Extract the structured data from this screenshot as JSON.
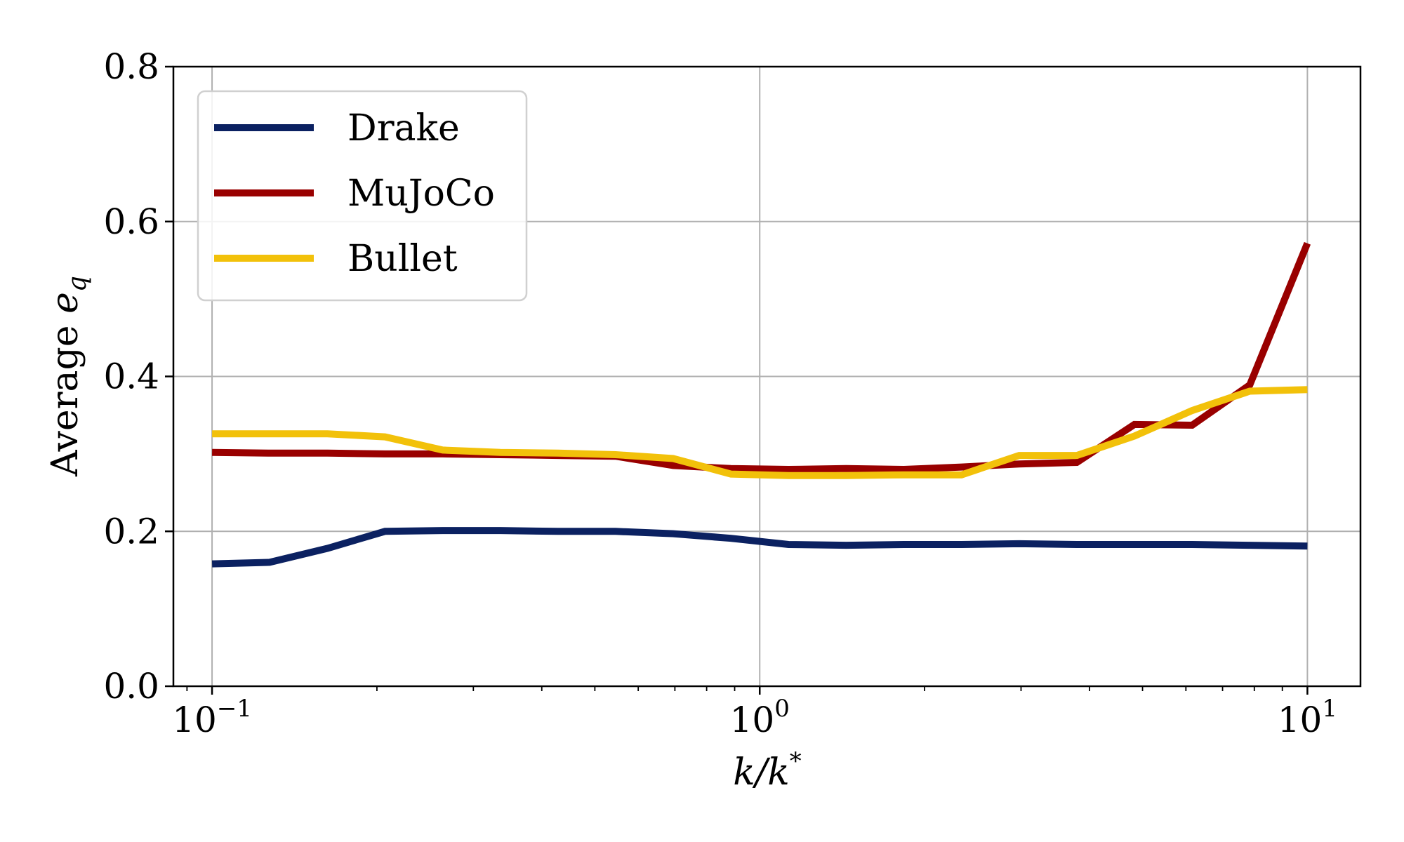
{
  "chart_data": {
    "type": "line",
    "xscale": "log",
    "xlim": [
      0.085,
      12.5
    ],
    "ylim": [
      0.0,
      0.8
    ],
    "grid": true,
    "legend_position": "top-left",
    "xlabel_parts": {
      "main": "k/k",
      "sup": "*"
    },
    "ylabel_parts": {
      "main": "Average ",
      "var": "e",
      "sub": "q"
    },
    "x_ticks": [
      {
        "value": 0.1,
        "base": "10",
        "exp": "−1"
      },
      {
        "value": 1,
        "base": "10",
        "exp": "0"
      },
      {
        "value": 10,
        "base": "10",
        "exp": "1"
      }
    ],
    "y_ticks": [
      {
        "value": 0.0,
        "label": "0.0"
      },
      {
        "value": 0.2,
        "label": "0.2"
      },
      {
        "value": 0.4,
        "label": "0.4"
      },
      {
        "value": 0.6,
        "label": "0.6"
      },
      {
        "value": 0.8,
        "label": "0.8"
      }
    ],
    "x": [
      0.1,
      0.1274,
      0.1624,
      0.2069,
      0.2637,
      0.336,
      0.4281,
      0.5456,
      0.6952,
      0.8859,
      1.1288,
      1.4384,
      1.833,
      2.3357,
      2.9764,
      3.7927,
      4.8329,
      6.1585,
      7.8476,
      10.0
    ],
    "series": [
      {
        "name": "Drake",
        "color": "#0b2161",
        "values": [
          0.158,
          0.16,
          0.178,
          0.2,
          0.201,
          0.201,
          0.2,
          0.2,
          0.197,
          0.191,
          0.183,
          0.182,
          0.183,
          0.183,
          0.184,
          0.183,
          0.183,
          0.183,
          0.182,
          0.181
        ]
      },
      {
        "name": "MuJoCo",
        "color": "#990000",
        "values": [
          0.302,
          0.301,
          0.301,
          0.3,
          0.3,
          0.299,
          0.298,
          0.297,
          0.285,
          0.281,
          0.28,
          0.281,
          0.28,
          0.283,
          0.287,
          0.289,
          0.338,
          0.337,
          0.389,
          0.572
        ]
      },
      {
        "name": "Bullet",
        "color": "#f2c10a",
        "values": [
          0.326,
          0.326,
          0.326,
          0.322,
          0.305,
          0.302,
          0.301,
          0.299,
          0.294,
          0.274,
          0.272,
          0.272,
          0.273,
          0.273,
          0.298,
          0.298,
          0.323,
          0.356,
          0.381,
          0.383
        ]
      }
    ]
  }
}
